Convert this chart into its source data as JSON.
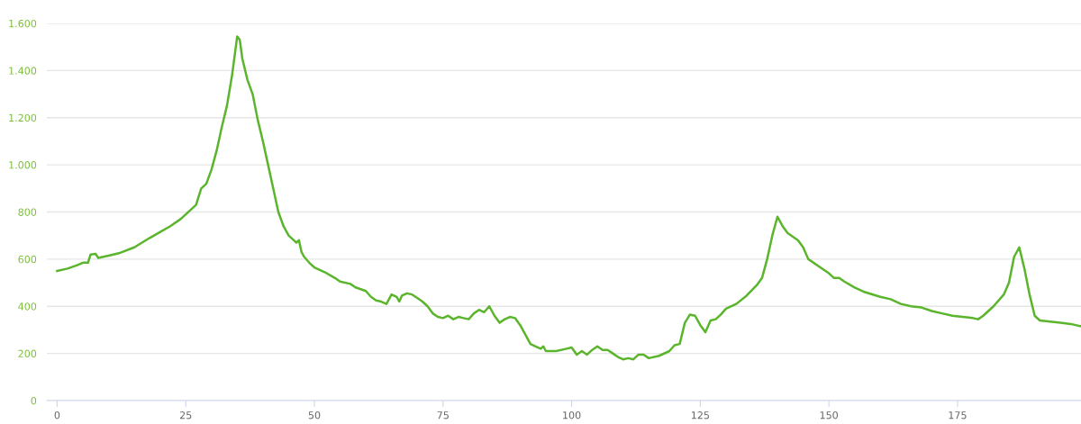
{
  "chart_data": {
    "type": "line",
    "x": [
      0,
      2,
      4,
      5,
      6,
      6.5,
      7.5,
      8,
      10,
      12,
      15,
      18,
      22,
      24,
      26,
      27,
      28,
      29,
      30,
      31,
      32,
      33,
      34,
      35,
      35.5,
      36,
      37,
      38,
      39,
      40,
      41,
      42,
      43,
      44,
      45,
      46,
      46.5,
      47,
      47.5,
      48,
      49,
      50,
      52,
      54,
      55,
      57,
      58,
      60,
      61,
      62,
      63,
      64,
      64.5,
      65,
      66,
      66.5,
      67,
      68,
      69,
      70,
      71,
      72,
      73,
      74,
      75,
      76,
      77,
      78,
      79,
      80,
      81,
      82,
      83,
      84,
      85,
      86,
      87,
      88,
      89,
      90,
      91,
      92,
      93,
      94,
      94.5,
      95,
      97,
      99,
      100,
      101,
      102,
      103,
      104,
      105,
      106,
      107,
      108,
      109,
      110,
      111,
      112,
      113,
      114,
      115,
      117,
      119,
      120,
      121,
      122,
      123,
      124,
      125,
      126,
      127,
      128,
      129,
      130,
      132,
      134,
      136,
      137,
      138,
      139,
      140,
      141,
      142,
      144,
      145,
      146,
      148,
      150,
      151,
      152,
      153,
      155,
      157,
      160,
      162,
      164,
      166,
      168,
      170,
      172,
      174,
      176,
      178,
      179,
      180,
      182,
      184,
      185,
      186,
      187,
      188,
      189,
      190,
      191,
      193,
      195,
      197,
      199
    ],
    "series": [
      {
        "color": "#5bb52c",
        "values": [
          550,
          560,
          575,
          585,
          585,
          620,
          622,
          605,
          615,
          625,
          650,
          690,
          740,
          770,
          810,
          830,
          900,
          920,
          980,
          1060,
          1160,
          1250,
          1380,
          1545,
          1530,
          1450,
          1360,
          1300,
          1190,
          1100,
          1000,
          900,
          800,
          740,
          700,
          680,
          670,
          680,
          630,
          610,
          585,
          565,
          545,
          520,
          505,
          495,
          480,
          465,
          440,
          425,
          420,
          410,
          430,
          450,
          440,
          420,
          445,
          455,
          450,
          435,
          420,
          400,
          370,
          355,
          350,
          360,
          345,
          355,
          350,
          345,
          370,
          385,
          375,
          400,
          360,
          330,
          345,
          355,
          350,
          320,
          280,
          240,
          230,
          220,
          230,
          210,
          210,
          220,
          225,
          195,
          210,
          195,
          215,
          230,
          215,
          215,
          200,
          185,
          175,
          180,
          175,
          195,
          195,
          180,
          190,
          210,
          235,
          240,
          330,
          365,
          360,
          320,
          290,
          340,
          345,
          365,
          390,
          410,
          445,
          490,
          520,
          600,
          700,
          780,
          740,
          710,
          680,
          650,
          600,
          570,
          540,
          520,
          520,
          505,
          480,
          460,
          440,
          430,
          410,
          400,
          395,
          380,
          370,
          360,
          355,
          350,
          345,
          360,
          400,
          450,
          500,
          610,
          650,
          560,
          450,
          360,
          340,
          335,
          330,
          325,
          315
        ]
      }
    ],
    "xlim": [
      -2,
      199
    ],
    "ylim": [
      0,
      1600
    ],
    "xticks": [
      0,
      25,
      50,
      75,
      100,
      125,
      150,
      175
    ],
    "yticks": [
      0,
      200,
      400,
      600,
      800,
      {
        "value": 1000,
        "label": "1.000"
      },
      {
        "value": 1200,
        "label": "1.200"
      },
      {
        "value": 1400,
        "label": "1.400"
      },
      {
        "value": 1600,
        "label": "1.600"
      }
    ],
    "grid": "y",
    "marker": "none",
    "line_style": "solid"
  }
}
